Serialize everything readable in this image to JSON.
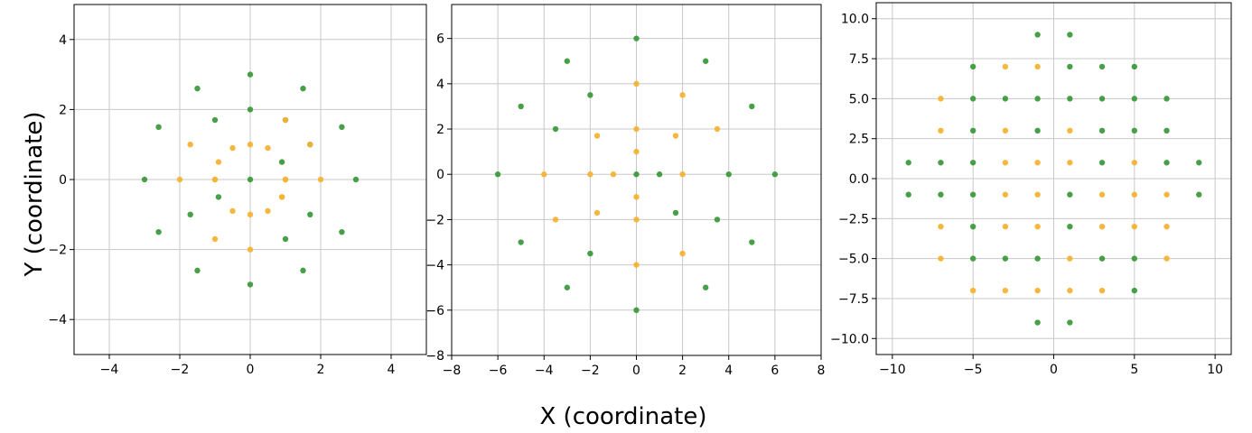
{
  "figure": {
    "xlabel": "X (coordinate)",
    "ylabel": "Y (coordinate)"
  },
  "colors": {
    "green": "#3d9b3d",
    "orange": "#f5b335",
    "grid": "#c8c8c8"
  },
  "chart_data": [
    {
      "type": "scatter",
      "title": "",
      "xlim": [
        -5,
        5
      ],
      "ylim": [
        -5,
        5
      ],
      "xticks": [
        -4,
        -2,
        0,
        2,
        4
      ],
      "yticks": [
        -4,
        -2,
        0,
        2,
        4
      ],
      "grid": true,
      "series": [
        {
          "color": "green",
          "points": [
            [
              0,
              3
            ],
            [
              1.5,
              2.6
            ],
            [
              2.6,
              1.5
            ],
            [
              3,
              0
            ],
            [
              2.6,
              -1.5
            ],
            [
              1.5,
              -2.6
            ],
            [
              0,
              -3
            ],
            [
              -1.5,
              -2.6
            ],
            [
              -2.6,
              -1.5
            ],
            [
              -3,
              0
            ],
            [
              -2.6,
              1.5
            ],
            [
              -1.5,
              2.6
            ],
            [
              0,
              2
            ],
            [
              1,
              1.7
            ],
            [
              1.7,
              1
            ],
            [
              0.9,
              0.5
            ],
            [
              1.7,
              -1
            ],
            [
              1,
              -1.7
            ],
            [
              -1,
              1.7
            ],
            [
              -1.7,
              -1
            ],
            [
              -0.9,
              -0.5
            ],
            [
              0,
              0
            ]
          ]
        },
        {
          "color": "orange",
          "points": [
            [
              0,
              1
            ],
            [
              0.5,
              0.9
            ],
            [
              0.9,
              -0.5
            ],
            [
              0.5,
              -0.9
            ],
            [
              0,
              -1
            ],
            [
              -0.5,
              -0.9
            ],
            [
              -1,
              0
            ],
            [
              -0.5,
              0.9
            ],
            [
              -0.9,
              0.5
            ],
            [
              1,
              0
            ],
            [
              1,
              1.7
            ],
            [
              1.7,
              1
            ],
            [
              2,
              0
            ],
            [
              0.9,
              -0.5
            ],
            [
              0,
              -2
            ],
            [
              -1,
              -1.7
            ],
            [
              -2,
              0
            ],
            [
              -1.7,
              1
            ],
            [
              -1,
              0
            ],
            [
              1,
              0
            ]
          ]
        }
      ]
    },
    {
      "type": "scatter",
      "title": "",
      "xlim": [
        -8,
        8
      ],
      "ylim": [
        -8,
        7.5
      ],
      "xticks": [
        -8,
        -6,
        -4,
        -2,
        0,
        2,
        4,
        6,
        8
      ],
      "yticks": [
        -8,
        -6,
        -4,
        -2,
        0,
        2,
        4,
        6
      ],
      "grid": true,
      "series": [
        {
          "color": "green",
          "points": [
            [
              0,
              6
            ],
            [
              3,
              5
            ],
            [
              5,
              3
            ],
            [
              6,
              0
            ],
            [
              5,
              -3
            ],
            [
              3,
              -5
            ],
            [
              0,
              -6
            ],
            [
              -3,
              -5
            ],
            [
              -5,
              -3
            ],
            [
              -6,
              0
            ],
            [
              -5,
              3
            ],
            [
              -3,
              5
            ],
            [
              -2,
              3.5
            ],
            [
              -3.5,
              2
            ],
            [
              0,
              0
            ],
            [
              1,
              0
            ],
            [
              4,
              0
            ],
            [
              3.5,
              -2
            ],
            [
              1.7,
              -1.7
            ],
            [
              -2,
              -3.5
            ]
          ]
        },
        {
          "color": "orange",
          "points": [
            [
              0,
              4
            ],
            [
              2,
              3.5
            ],
            [
              3.5,
              2
            ],
            [
              0,
              2
            ],
            [
              1.7,
              1.7
            ],
            [
              -1.7,
              1.7
            ],
            [
              0,
              1
            ],
            [
              -4,
              0
            ],
            [
              -2,
              0
            ],
            [
              -1,
              0
            ],
            [
              2,
              0
            ],
            [
              0,
              -1
            ],
            [
              0,
              -2
            ],
            [
              -1.7,
              -1.7
            ],
            [
              -3.5,
              -2
            ],
            [
              2,
              -3.5
            ],
            [
              0,
              -4
            ]
          ]
        }
      ]
    },
    {
      "type": "scatter",
      "title": "",
      "xlim": [
        -11,
        11
      ],
      "ylim": [
        -11,
        11
      ],
      "xticks": [
        -10,
        -5,
        0,
        5,
        10
      ],
      "yticks": [
        -10.0,
        -7.5,
        -5.0,
        -2.5,
        0.0,
        2.5,
        5.0,
        7.5,
        10.0
      ],
      "ytick_labels": [
        "−10.0",
        "−7.5",
        "−5.0",
        "−2.5",
        "0.0",
        "2.5",
        "5.0",
        "7.5",
        "10.0"
      ],
      "grid": true,
      "series": [
        {
          "color": "green",
          "points": [
            [
              -1,
              9
            ],
            [
              1,
              9
            ],
            [
              -5,
              7
            ],
            [
              1,
              7
            ],
            [
              3,
              7
            ],
            [
              5,
              7
            ],
            [
              -5,
              5
            ],
            [
              -3,
              5
            ],
            [
              -1,
              5
            ],
            [
              1,
              5
            ],
            [
              3,
              5
            ],
            [
              5,
              5
            ],
            [
              7,
              5
            ],
            [
              -5,
              3
            ],
            [
              -1,
              3
            ],
            [
              3,
              3
            ],
            [
              5,
              3
            ],
            [
              7,
              3
            ],
            [
              -9,
              1
            ],
            [
              -7,
              1
            ],
            [
              -5,
              1
            ],
            [
              3,
              1
            ],
            [
              7,
              1
            ],
            [
              9,
              1
            ],
            [
              -9,
              -1
            ],
            [
              -7,
              -1
            ],
            [
              -5,
              -1
            ],
            [
              1,
              -1
            ],
            [
              9,
              -1
            ],
            [
              -5,
              -3
            ],
            [
              1,
              -3
            ],
            [
              -5,
              -5
            ],
            [
              -3,
              -5
            ],
            [
              -1,
              -5
            ],
            [
              3,
              -5
            ],
            [
              5,
              -5
            ],
            [
              5,
              -7
            ],
            [
              -1,
              -9
            ],
            [
              1,
              -9
            ]
          ]
        },
        {
          "color": "orange",
          "points": [
            [
              -3,
              7
            ],
            [
              -1,
              7
            ],
            [
              -7,
              5
            ],
            [
              -7,
              3
            ],
            [
              -3,
              3
            ],
            [
              1,
              3
            ],
            [
              -3,
              1
            ],
            [
              -1,
              1
            ],
            [
              1,
              1
            ],
            [
              5,
              1
            ],
            [
              -3,
              -1
            ],
            [
              -1,
              -1
            ],
            [
              3,
              -1
            ],
            [
              5,
              -1
            ],
            [
              7,
              -1
            ],
            [
              -7,
              -3
            ],
            [
              -3,
              -3
            ],
            [
              -1,
              -3
            ],
            [
              3,
              -3
            ],
            [
              5,
              -3
            ],
            [
              7,
              -3
            ],
            [
              -7,
              -5
            ],
            [
              1,
              -5
            ],
            [
              7,
              -5
            ],
            [
              -5,
              -7
            ],
            [
              -3,
              -7
            ],
            [
              -1,
              -7
            ],
            [
              1,
              -7
            ],
            [
              3,
              -7
            ]
          ]
        }
      ]
    }
  ]
}
